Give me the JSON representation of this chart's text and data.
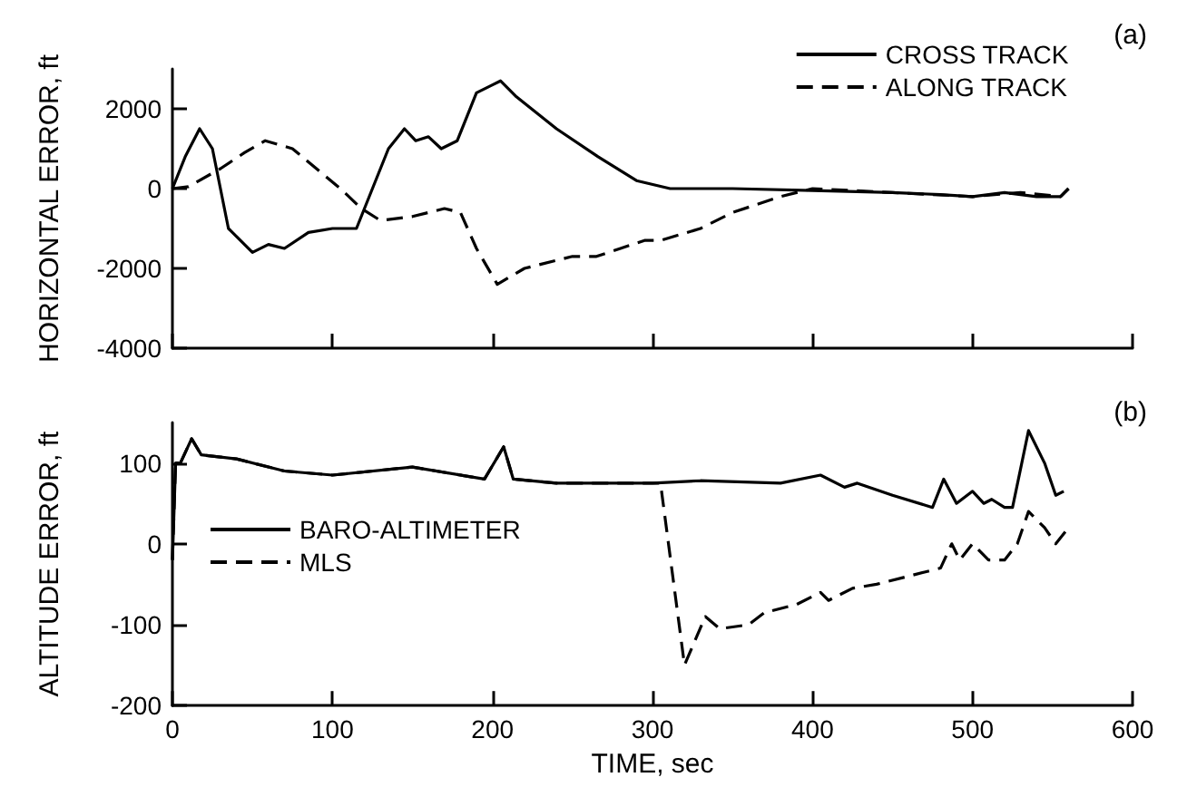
{
  "chart_data": [
    {
      "type": "line",
      "ylabel": "HORIZONTAL ERROR, ft",
      "annotations": [
        "(a)"
      ],
      "xlim": [
        0,
        600
      ],
      "xticks": [
        0,
        100,
        200,
        300,
        400,
        500,
        600
      ],
      "ylim": [
        -4000,
        3000
      ],
      "yticks": [
        -4000,
        -2000,
        0,
        2000
      ],
      "tick_labels": "y",
      "grid": false,
      "legend": "top right",
      "marker": "none",
      "series": [
        {
          "name": "CROSS TRACK",
          "color": "#000000",
          "line_style": "solid",
          "x": [
            0,
            8,
            17,
            25,
            35,
            50,
            60,
            70,
            85,
            100,
            115,
            125,
            135,
            145,
            152,
            160,
            168,
            178,
            190,
            200,
            205,
            215,
            240,
            266,
            290,
            311,
            350,
            400,
            450,
            480,
            500,
            520,
            540,
            555,
            560
          ],
          "values": [
            0,
            800,
            1500,
            1000,
            -1000,
            -1600,
            -1400,
            -1500,
            -1100,
            -1000,
            -1000,
            0,
            1000,
            1500,
            1200,
            1300,
            1000,
            1200,
            2400,
            2600,
            2700,
            2300,
            1500,
            800,
            200,
            0,
            0,
            -50,
            -100,
            -150,
            -200,
            -100,
            -200,
            -200,
            0
          ]
        },
        {
          "name": "ALONG TRACK",
          "color": "#000000",
          "line_style": "dashed",
          "x": [
            0,
            10,
            30,
            45,
            58,
            75,
            90,
            105,
            118,
            130,
            150,
            170,
            180,
            190,
            203,
            220,
            250,
            265,
            280,
            295,
            305,
            330,
            350,
            380,
            400,
            450,
            500,
            530,
            555,
            560
          ],
          "values": [
            0,
            50,
            500,
            900,
            1200,
            1000,
            500,
            0,
            -500,
            -800,
            -700,
            -500,
            -600,
            -1500,
            -2400,
            -2000,
            -1700,
            -1700,
            -1500,
            -1300,
            -1300,
            -1000,
            -600,
            -200,
            0,
            -100,
            -200,
            -100,
            -200,
            0
          ]
        }
      ]
    },
    {
      "type": "line",
      "xlabel": "TIME, sec",
      "ylabel": "ALTITUDE ERROR, ft",
      "annotations": [
        "(b)"
      ],
      "xlim": [
        0,
        600
      ],
      "xticks": [
        0,
        100,
        200,
        300,
        400,
        500,
        600
      ],
      "ylim": [
        -200,
        150
      ],
      "yticks": [
        -200,
        -100,
        0,
        100
      ],
      "grid": false,
      "legend": "left",
      "marker": "none",
      "series": [
        {
          "name": "BARO-ALTIMETER",
          "color": "#000000",
          "line_style": "solid",
          "x": [
            0,
            2,
            5,
            12,
            18,
            40,
            70,
            100,
            150,
            195,
            207,
            213,
            240,
            300,
            330,
            380,
            405,
            420,
            428,
            450,
            475,
            482,
            490,
            500,
            507,
            512,
            520,
            525,
            535,
            545,
            552,
            557
          ],
          "values": [
            -20,
            100,
            100,
            130,
            110,
            105,
            90,
            85,
            95,
            80,
            120,
            80,
            75,
            75,
            78,
            75,
            85,
            70,
            75,
            60,
            45,
            80,
            50,
            65,
            50,
            55,
            45,
            45,
            140,
            100,
            60,
            65
          ]
        },
        {
          "name": "MLS",
          "color": "#000000",
          "line_style": "dashed",
          "x": [
            0,
            2,
            5,
            12,
            18,
            40,
            70,
            100,
            150,
            195,
            207,
            213,
            240,
            300,
            305,
            320,
            333,
            342,
            360,
            370,
            390,
            405,
            410,
            425,
            440,
            470,
            480,
            487,
            492,
            500,
            510,
            520,
            528,
            535,
            545,
            552,
            560
          ],
          "values": [
            -20,
            100,
            100,
            130,
            110,
            105,
            90,
            85,
            95,
            80,
            120,
            80,
            75,
            75,
            75,
            -150,
            -90,
            -105,
            -100,
            -85,
            -75,
            -60,
            -70,
            -55,
            -50,
            -35,
            -30,
            0,
            -20,
            0,
            -20,
            -20,
            0,
            40,
            20,
            0,
            20
          ]
        }
      ]
    }
  ]
}
